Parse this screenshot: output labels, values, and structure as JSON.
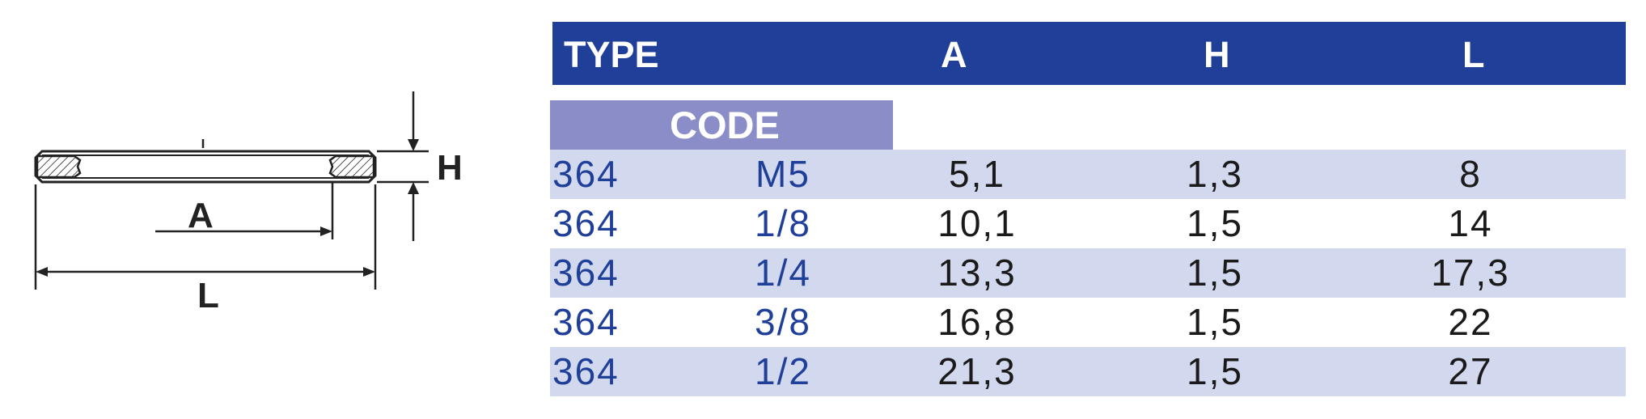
{
  "drawing": {
    "labels": {
      "h": "H",
      "a": "A",
      "l": "L"
    },
    "stroke_color": "#222222"
  },
  "table": {
    "header": {
      "type": "TYPE",
      "a": "A",
      "h": "H",
      "l": "L"
    },
    "code_label": "CODE",
    "colors": {
      "header_bg": "#203f99",
      "code_bg": "#8a8dc8",
      "row_shade": "#d2d9ee",
      "code_text": "#203f99"
    },
    "rows": [
      {
        "type": "364",
        "code": "M5",
        "a": "5,1",
        "h": "1,3",
        "l": "8",
        "shaded": true
      },
      {
        "type": "364",
        "code": "1/8",
        "a": "10,1",
        "h": "1,5",
        "l": "14",
        "shaded": false
      },
      {
        "type": "364",
        "code": "1/4",
        "a": "13,3",
        "h": "1,5",
        "l": "17,3",
        "shaded": true
      },
      {
        "type": "364",
        "code": "3/8",
        "a": "16,8",
        "h": "1,5",
        "l": "22",
        "shaded": false
      },
      {
        "type": "364",
        "code": "1/2",
        "a": "21,3",
        "h": "1,5",
        "l": "27",
        "shaded": true
      }
    ]
  }
}
